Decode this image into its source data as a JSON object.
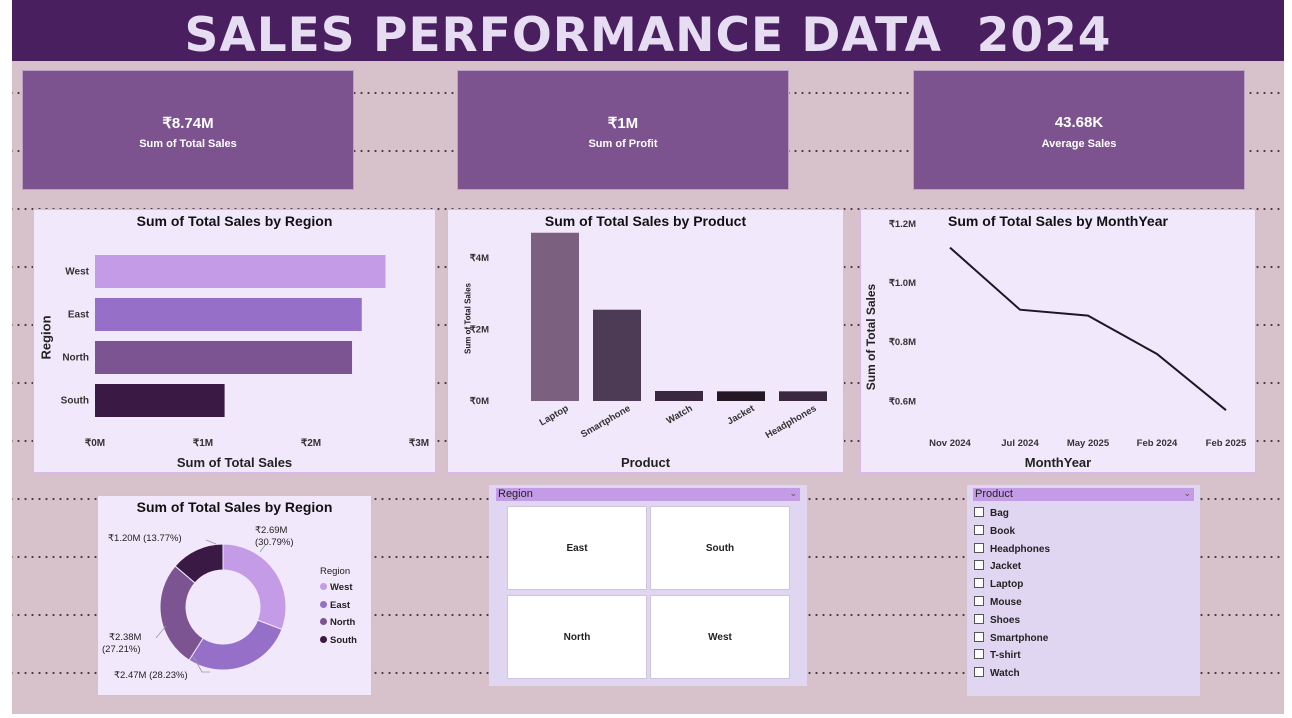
{
  "dashboard": {
    "title": "SALES PERFORMANCE DATA  2024"
  },
  "kpis": [
    {
      "value": "₹8.74M",
      "label": "Sum of Total Sales"
    },
    {
      "value": "₹1M",
      "label": "Sum of Profit"
    },
    {
      "value": "43.68K",
      "label": "Average Sales"
    }
  ],
  "colors": {
    "west": "#c39be6",
    "east": "#9670c8",
    "north": "#7b5491",
    "south": "#3a1a45"
  },
  "charts": {
    "region_bar": {
      "title": "Sum of Total Sales by Region",
      "xlabel": "Sum of Total Sales",
      "ylabel": "Region",
      "ticks": [
        "₹0M",
        "₹1M",
        "₹2M",
        "₹3M"
      ]
    },
    "product_bar": {
      "title": "Sum of Total Sales by Product",
      "xlabel": "Product",
      "ylabel": "Sum of Total Sales",
      "ticks": [
        "₹0M",
        "₹2M",
        "₹4M"
      ]
    },
    "month_line": {
      "title": "Sum of Total Sales by MonthYear",
      "xlabel": "MonthYear",
      "ylabel": "Sum of Total Sales",
      "ticks": [
        "₹0.6M",
        "₹0.8M",
        "₹1.0M",
        "₹1.2M"
      ]
    },
    "region_donut": {
      "title": "Sum of Total Sales by Region",
      "legend_title": "Region",
      "labels": [
        {
          "value": "₹2.69M",
          "pct": "(30.79%)"
        },
        {
          "value": "₹2.47M (28.23%)",
          "pct": ""
        },
        {
          "value": "₹2.38M",
          "pct": "(27.21%)"
        },
        {
          "value": "₹1.20M (13.77%)",
          "pct": ""
        }
      ]
    }
  },
  "chart_data": [
    {
      "type": "bar",
      "orientation": "horizontal",
      "title": "Sum of Total Sales by Region",
      "xlabel": "Sum of Total Sales",
      "ylabel": "Region",
      "categories": [
        "West",
        "East",
        "North",
        "South"
      ],
      "values": [
        2.69,
        2.47,
        2.38,
        1.2
      ],
      "xlim": [
        0,
        3
      ]
    },
    {
      "type": "bar",
      "title": "Sum of Total Sales by Product",
      "xlabel": "Product",
      "ylabel": "Sum of Total Sales",
      "categories": [
        "Laptop",
        "Smartphone",
        "Watch",
        "Jacket",
        "Headphones"
      ],
      "values": [
        4.7,
        2.55,
        0.28,
        0.27,
        0.27
      ],
      "ylim": [
        0,
        5
      ],
      "colors": [
        "#7b6080",
        "#4d3b56",
        "#3a2840",
        "#231823",
        "#3a2840"
      ]
    },
    {
      "type": "line",
      "title": "Sum of Total Sales by MonthYear",
      "xlabel": "MonthYear",
      "ylabel": "Sum of Total Sales",
      "x": [
        "Nov 2024",
        "Jul 2024",
        "May 2025",
        "Feb 2024",
        "Feb 2025"
      ],
      "y": [
        1.12,
        0.91,
        0.89,
        0.76,
        0.57
      ],
      "ylim": [
        0.52,
        1.22
      ]
    },
    {
      "type": "pie",
      "donut": true,
      "title": "Sum of Total Sales by Region",
      "legend_title": "Region",
      "categories": [
        "West",
        "East",
        "North",
        "South"
      ],
      "values": [
        2.69,
        2.47,
        2.38,
        1.2
      ],
      "percentages": [
        30.79,
        28.23,
        27.21,
        13.77
      ]
    }
  ],
  "region_slicer": {
    "header": "Region",
    "tiles": [
      "East",
      "South",
      "North",
      "West"
    ]
  },
  "product_slicer": {
    "header": "Product",
    "items": [
      "Bag",
      "Book",
      "Headphones",
      "Jacket",
      "Laptop",
      "Mouse",
      "Shoes",
      "Smartphone",
      "T-shirt",
      "Watch"
    ]
  }
}
